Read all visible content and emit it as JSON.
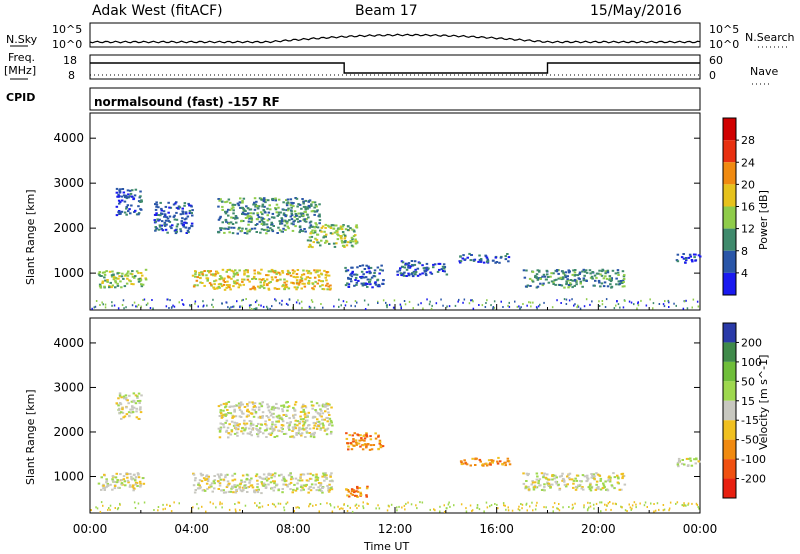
{
  "header": {
    "station": "Adak West (fitACF)",
    "beam": "Beam 17",
    "date": "15/May/2016"
  },
  "top_panels": {
    "nsky_label": "N.Sky",
    "nsky_top": "10^5",
    "nsky_bottom": "10^0",
    "nsearch_label": "N.Search",
    "nsearch_top": "10^5",
    "nsearch_bottom": "10^0",
    "freq_label": "Freq.",
    "freq_unit": "[MHz]",
    "freq_top": "18",
    "freq_bottom": "8",
    "nave_label": "Nave",
    "nave_top": "60",
    "nave_bottom": "0",
    "cpid_label": "CPID",
    "cpid_text": "normalsound (fast) -157 RF"
  },
  "chart_data": [
    {
      "type": "heatmap",
      "name": "power",
      "ylabel": "Slant Range [km]",
      "y_ticks": [
        "1000",
        "2000",
        "3000",
        "4000"
      ],
      "ylim": [
        180,
        4560
      ],
      "colorbar_label": "Power [dB]",
      "colorbar_ticks": [
        "4",
        "8",
        "12",
        "16",
        "20",
        "24",
        "28"
      ],
      "colors": [
        "#1a1af0",
        "#2a56a8",
        "#3f8a6c",
        "#8fcc4a",
        "#e6c21c",
        "#f08a10",
        "#e83010",
        "#d00000"
      ],
      "echo_regions": [
        {
          "t_start": 0.3,
          "t_end": 2.2,
          "r_start": 700,
          "r_end": 1100,
          "level": 3
        },
        {
          "t_start": 4.0,
          "t_end": 9.5,
          "r_start": 650,
          "r_end": 1100,
          "level": 4
        },
        {
          "t_start": 1.0,
          "t_end": 2.0,
          "r_start": 2300,
          "r_end": 2900,
          "level": 1
        },
        {
          "t_start": 2.5,
          "t_end": 4.0,
          "r_start": 1900,
          "r_end": 2600,
          "level": 1
        },
        {
          "t_start": 5.0,
          "t_end": 9.0,
          "r_start": 1900,
          "r_end": 2700,
          "level": 2
        },
        {
          "t_start": 8.5,
          "t_end": 10.5,
          "r_start": 1600,
          "r_end": 2100,
          "level": 3
        },
        {
          "t_start": 10.0,
          "t_end": 11.5,
          "r_start": 700,
          "r_end": 1200,
          "level": 1
        },
        {
          "t_start": 12.0,
          "t_end": 14.0,
          "r_start": 950,
          "r_end": 1300,
          "level": 1
        },
        {
          "t_start": 14.5,
          "t_end": 16.5,
          "r_start": 1250,
          "r_end": 1450,
          "level": 1
        },
        {
          "t_start": 17.0,
          "t_end": 21.0,
          "r_start": 700,
          "r_end": 1100,
          "level": 2
        },
        {
          "t_start": 23.0,
          "t_end": 24.0,
          "r_start": 1250,
          "r_end": 1450,
          "level": 1
        }
      ]
    },
    {
      "type": "heatmap",
      "name": "velocity",
      "ylabel": "Slant Range [km]",
      "y_ticks": [
        "1000",
        "2000",
        "3000",
        "4000"
      ],
      "ylim": [
        180,
        4560
      ],
      "colorbar_label": "Velocity [m s^-1]",
      "colorbar_ticks": [
        "200",
        "100",
        "50",
        "15",
        "-15",
        "-50",
        "-100",
        "-200"
      ],
      "colors": [
        "#2a3aa8",
        "#3f8a4a",
        "#6fbe3a",
        "#9ed84e",
        "#c8c8c0",
        "#f0c020",
        "#f08a10",
        "#f05010",
        "#e82010"
      ],
      "echo_regions": [
        {
          "t_start": 0.3,
          "t_end": 2.2,
          "r_start": 700,
          "r_end": 1100,
          "level": 4
        },
        {
          "t_start": 4.0,
          "t_end": 9.5,
          "r_start": 650,
          "r_end": 1100,
          "level": 4
        },
        {
          "t_start": 1.0,
          "t_end": 2.0,
          "r_start": 2300,
          "r_end": 2900,
          "level": 4
        },
        {
          "t_start": 5.0,
          "t_end": 9.5,
          "r_start": 1900,
          "r_end": 2700,
          "level": 4
        },
        {
          "t_start": 10.0,
          "t_end": 11.5,
          "r_start": 1600,
          "r_end": 2000,
          "level": 6
        },
        {
          "t_start": 10.0,
          "t_end": 11.0,
          "r_start": 550,
          "r_end": 800,
          "level": 6
        },
        {
          "t_start": 14.5,
          "t_end": 16.5,
          "r_start": 1250,
          "r_end": 1450,
          "level": 6
        },
        {
          "t_start": 17.0,
          "t_end": 21.0,
          "r_start": 700,
          "r_end": 1100,
          "level": 4
        },
        {
          "t_start": 23.0,
          "t_end": 24.0,
          "r_start": 1250,
          "r_end": 1450,
          "level": 4
        }
      ]
    }
  ],
  "x_axis": {
    "xlabel": "Time UT",
    "ticks": [
      "00:00",
      "04:00",
      "08:00",
      "12:00",
      "16:00",
      "20:00",
      "00:00"
    ],
    "range": [
      0,
      24
    ]
  }
}
